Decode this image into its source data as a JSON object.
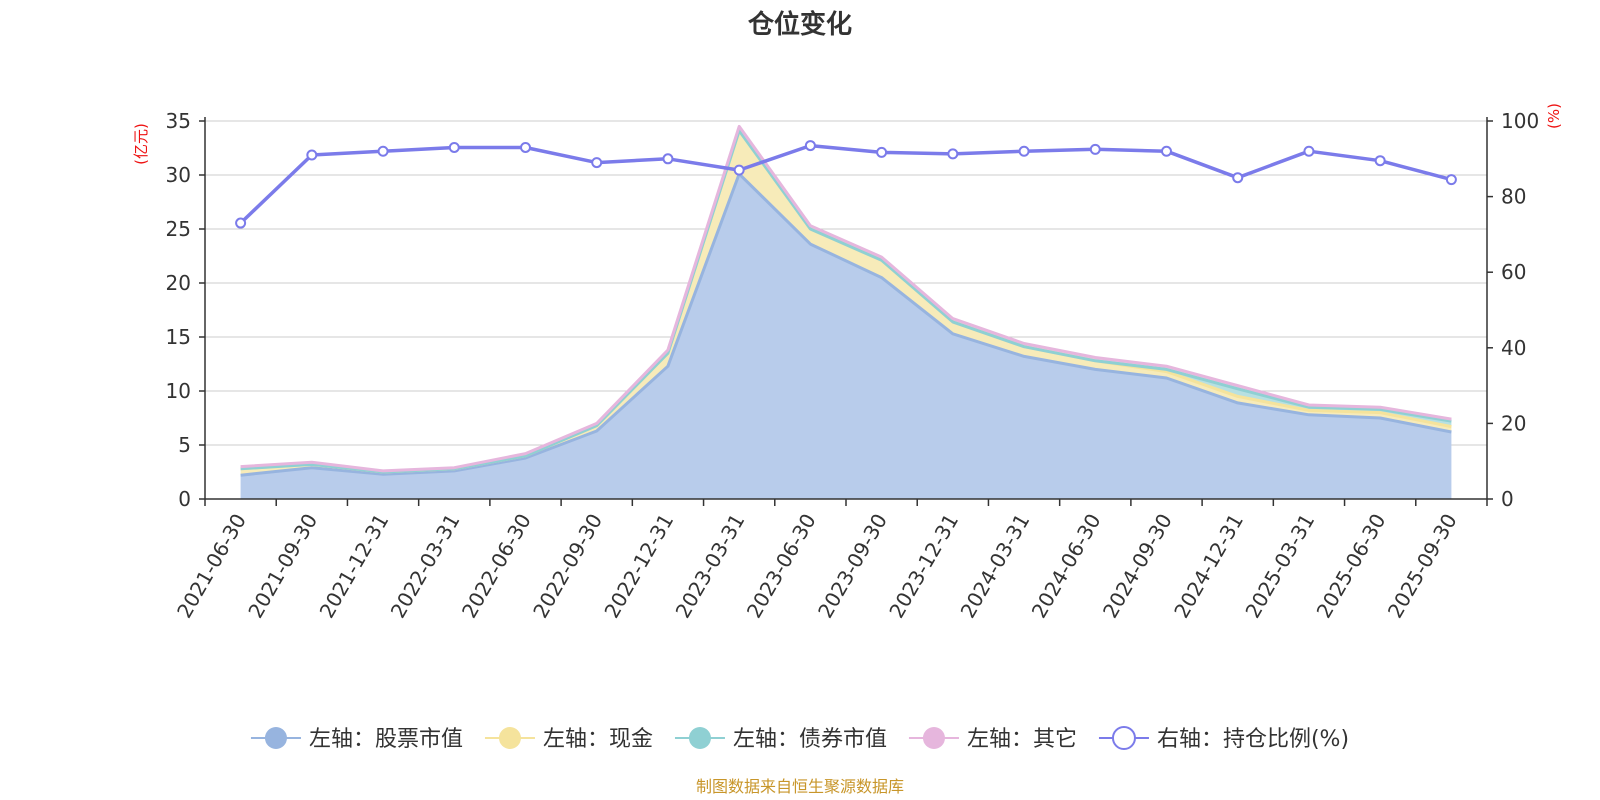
{
  "chart_data": {
    "type": "area",
    "title": "仓位变化",
    "left_unit": "(亿元)",
    "right_unit": "(%)",
    "categories": [
      "2021-06-30",
      "2021-09-30",
      "2021-12-31",
      "2022-03-31",
      "2022-06-30",
      "2022-09-30",
      "2022-12-31",
      "2023-03-31",
      "2023-06-30",
      "2023-09-30",
      "2023-12-31",
      "2024-03-31",
      "2024-06-30",
      "2024-09-30",
      "2024-12-31",
      "2025-03-31",
      "2025-06-30",
      "2025-09-30"
    ],
    "left_ylim": [
      0,
      35
    ],
    "left_ticks": [
      0,
      5,
      10,
      15,
      20,
      25,
      30,
      35
    ],
    "right_ylim": [
      0,
      100
    ],
    "right_ticks": [
      0,
      20,
      40,
      60,
      80,
      100
    ],
    "series": [
      {
        "name": "左轴：股票市值",
        "axis": "left",
        "stack": true,
        "color": "#97b4df",
        "fill": "#b8cceb",
        "values": [
          2.2,
          2.9,
          2.3,
          2.6,
          3.8,
          6.3,
          12.3,
          30.1,
          23.6,
          20.5,
          15.3,
          13.2,
          12.0,
          11.2,
          8.9,
          7.8,
          7.5,
          6.2
        ]
      },
      {
        "name": "左轴：现金",
        "axis": "left",
        "stack": true,
        "color": "#f5e39c",
        "fill": "#f7ebb9",
        "values": [
          0.6,
          0.3,
          0.2,
          0.2,
          0.2,
          0.5,
          1.2,
          4.0,
          1.4,
          1.6,
          1.1,
          0.9,
          0.8,
          0.6,
          0.6,
          0.4,
          0.5,
          0.5
        ]
      },
      {
        "name": "左轴：债券市值",
        "axis": "left",
        "stack": true,
        "color": "#8fd0d3",
        "fill": "#b7e0e2",
        "values": [
          0.0,
          0.0,
          0.0,
          0.0,
          0.0,
          0.0,
          0.0,
          0.0,
          0.0,
          0.0,
          0.0,
          0.0,
          0.0,
          0.2,
          0.7,
          0.3,
          0.3,
          0.5
        ]
      },
      {
        "name": "左轴：其它",
        "axis": "left",
        "stack": true,
        "color": "#e6b6dd",
        "fill": "#eecde8",
        "values": [
          0.2,
          0.2,
          0.1,
          0.1,
          0.2,
          0.2,
          0.3,
          0.4,
          0.3,
          0.3,
          0.3,
          0.3,
          0.3,
          0.3,
          0.3,
          0.2,
          0.2,
          0.2
        ]
      },
      {
        "name": "右轴：持仓比例(%)",
        "axis": "right",
        "stack": false,
        "color": "#7b7bea",
        "values": [
          73.0,
          91.0,
          92.0,
          93.0,
          93.0,
          89.0,
          90.0,
          87.0,
          93.5,
          91.7,
          91.3,
          92.0,
          92.5,
          92.0,
          85.0,
          92.0,
          89.5,
          84.5
        ]
      }
    ],
    "legend_position": "bottom",
    "grid": true
  },
  "footer": {
    "source": "制图数据来自恒生聚源数据库"
  }
}
